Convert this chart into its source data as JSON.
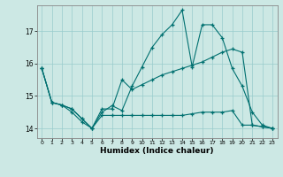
{
  "xlabel": "Humidex (Indice chaleur)",
  "background_color": "#cce8e4",
  "line_color": "#007070",
  "grid_color": "#99cccc",
  "xlim": [
    -0.5,
    23.5
  ],
  "ylim": [
    13.7,
    17.8
  ],
  "yticks": [
    14,
    15,
    16,
    17
  ],
  "xticks": [
    0,
    1,
    2,
    3,
    4,
    5,
    6,
    7,
    8,
    9,
    10,
    11,
    12,
    13,
    14,
    15,
    16,
    17,
    18,
    19,
    20,
    21,
    22,
    23
  ],
  "series1_x": [
    0,
    1,
    2,
    3,
    4,
    5,
    6,
    7,
    8,
    9,
    10,
    11,
    12,
    13,
    14,
    15,
    16,
    17,
    18,
    19,
    20,
    21,
    22,
    23
  ],
  "series1_y": [
    15.85,
    14.8,
    14.72,
    14.6,
    14.3,
    14.0,
    14.5,
    14.7,
    14.55,
    15.3,
    15.9,
    16.5,
    16.9,
    17.2,
    17.65,
    15.9,
    17.2,
    17.2,
    16.8,
    15.85,
    15.3,
    14.5,
    14.1,
    14.0
  ],
  "series2_x": [
    0,
    1,
    2,
    3,
    4,
    5,
    6,
    7,
    8,
    9,
    10,
    11,
    12,
    13,
    14,
    15,
    16,
    17,
    18,
    19,
    20,
    21,
    22,
    23
  ],
  "series2_y": [
    15.85,
    14.8,
    14.72,
    14.6,
    14.3,
    14.0,
    14.6,
    14.6,
    15.5,
    15.2,
    15.35,
    15.5,
    15.65,
    15.75,
    15.85,
    15.95,
    16.05,
    16.2,
    16.35,
    16.45,
    16.35,
    14.1,
    14.05,
    14.0
  ],
  "series3_x": [
    0,
    1,
    2,
    3,
    4,
    5,
    6,
    7,
    8,
    9,
    10,
    11,
    12,
    13,
    14,
    15,
    16,
    17,
    18,
    19,
    20,
    21,
    22,
    23
  ],
  "series3_y": [
    15.85,
    14.8,
    14.72,
    14.5,
    14.2,
    14.0,
    14.4,
    14.4,
    14.4,
    14.4,
    14.4,
    14.4,
    14.4,
    14.4,
    14.4,
    14.45,
    14.5,
    14.5,
    14.5,
    14.55,
    14.1,
    14.1,
    14.05,
    14.0
  ]
}
